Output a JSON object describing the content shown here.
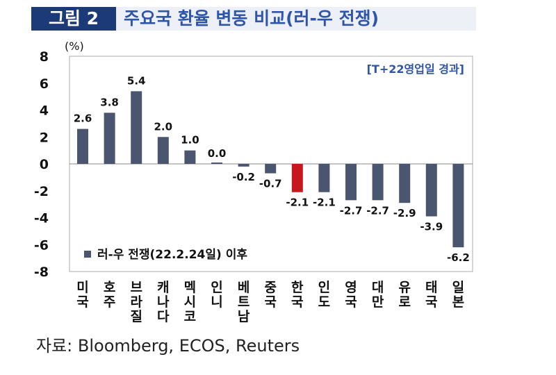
{
  "figure": {
    "badge": "그림 2",
    "title": "주요국 환율 변동 비교(러-우 전쟁)",
    "source": "자료: Bloomberg, ECOS, Reuters"
  },
  "chart_data": {
    "type": "bar",
    "unit_label": "(%)",
    "annotation": "[T+22영업일 경과]",
    "legend": "러-우 전쟁(22.2.24일) 이후",
    "legend_position": "bottom-left",
    "categories": [
      "미국",
      "호주",
      "브라질",
      "캐나다",
      "멕시코",
      "인니",
      "베트남",
      "중국",
      "한국",
      "인도",
      "영국",
      "대만",
      "유로",
      "태국",
      "일본"
    ],
    "values": [
      2.6,
      3.8,
      5.4,
      2.0,
      1.0,
      0.0,
      -0.2,
      -0.7,
      -2.1,
      -2.1,
      -2.7,
      -2.7,
      -2.9,
      -3.9,
      -6.2
    ],
    "value_labels": [
      "2.6",
      "3.8",
      "5.4",
      "2.0",
      "1.0",
      "0.0",
      "-0.2",
      "-0.7",
      "-2.1",
      "-2.1",
      "-2.7",
      "-2.7",
      "-2.9",
      "-3.9",
      "-6.2"
    ],
    "highlight": "한국",
    "ylim": [
      -8,
      8
    ],
    "yticks": [
      "8",
      "6",
      "4",
      "2",
      "0",
      "-2",
      "-4",
      "-6",
      "-8"
    ],
    "grid": false,
    "colors": {
      "bar": "#4a5670",
      "highlight": "#c8161e"
    }
  }
}
